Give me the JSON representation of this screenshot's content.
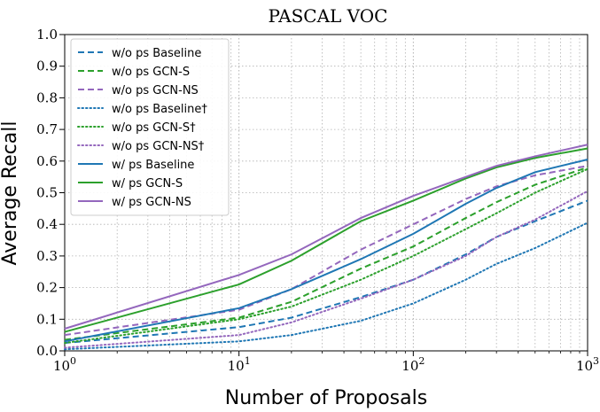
{
  "chart_data": {
    "type": "line",
    "title": "PASCAL VOC",
    "xlabel": "Number of Proposals",
    "ylabel": "Average Recall",
    "xscale": "log",
    "xlim": [
      1,
      1000
    ],
    "ylim": [
      0.0,
      1.0
    ],
    "grid": true,
    "legend_position": "top-left",
    "x": [
      1,
      10,
      20,
      50,
      100,
      200,
      300,
      500,
      1000
    ],
    "x_tick_labels": [
      "10^0",
      "10^1",
      "10^2",
      "10^3"
    ],
    "x_ticks": [
      1,
      10,
      100,
      1000
    ],
    "y_ticks": [
      0.0,
      0.1,
      0.2,
      0.3,
      0.4,
      0.5,
      0.6,
      0.7,
      0.8,
      0.9,
      1.0
    ],
    "y_tick_labels": [
      "0.0",
      "0.1",
      "0.2",
      "0.3",
      "0.4",
      "0.5",
      "0.6",
      "0.7",
      "0.8",
      "0.9",
      "1.0"
    ],
    "series": [
      {
        "name": "w/o ps Baseline",
        "color": "#1f77b4",
        "style": "dashed",
        "values": [
          0.025,
          0.075,
          0.105,
          0.17,
          0.225,
          0.305,
          0.36,
          0.41,
          0.475
        ]
      },
      {
        "name": "w/o ps GCN-S",
        "color": "#2ca02c",
        "style": "dashed",
        "values": [
          0.035,
          0.105,
          0.155,
          0.26,
          0.33,
          0.42,
          0.47,
          0.525,
          0.58
        ]
      },
      {
        "name": "w/o ps GCN-NS",
        "color": "#9467bd",
        "style": "dashed",
        "values": [
          0.05,
          0.13,
          0.195,
          0.32,
          0.4,
          0.48,
          0.52,
          0.555,
          0.585
        ]
      },
      {
        "name": "w/o ps Baseline†",
        "color": "#1f77b4",
        "style": "dotted",
        "values": [
          0.005,
          0.03,
          0.05,
          0.095,
          0.15,
          0.225,
          0.275,
          0.325,
          0.405
        ]
      },
      {
        "name": "w/o ps GCN-S†",
        "color": "#2ca02c",
        "style": "dotted",
        "values": [
          0.025,
          0.1,
          0.14,
          0.225,
          0.3,
          0.385,
          0.435,
          0.5,
          0.575
        ]
      },
      {
        "name": "w/o ps GCN-NS†",
        "color": "#9467bd",
        "style": "dotted",
        "values": [
          0.01,
          0.05,
          0.09,
          0.165,
          0.225,
          0.3,
          0.36,
          0.415,
          0.505
        ]
      },
      {
        "name": "w/ ps Baseline",
        "color": "#1f77b4",
        "style": "solid",
        "values": [
          0.03,
          0.135,
          0.195,
          0.29,
          0.37,
          0.465,
          0.515,
          0.565,
          0.605
        ]
      },
      {
        "name": "w/ ps GCN-S",
        "color": "#2ca02c",
        "style": "solid",
        "values": [
          0.06,
          0.21,
          0.285,
          0.41,
          0.475,
          0.545,
          0.58,
          0.61,
          0.64
        ]
      },
      {
        "name": "w/ ps GCN-NS",
        "color": "#9467bd",
        "style": "solid",
        "values": [
          0.07,
          0.24,
          0.305,
          0.42,
          0.49,
          0.55,
          0.585,
          0.615,
          0.652
        ]
      }
    ]
  }
}
